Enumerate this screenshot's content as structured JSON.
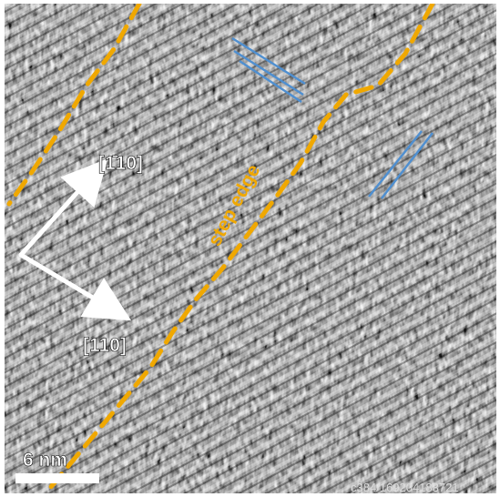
{
  "figure": {
    "direction_label_1": "[1̄1​0]",
    "direction_label_2": "[110]",
    "step_edge_label": "step edge",
    "scale_bar_label": "6 nm",
    "corner_id": "c384/169204183721",
    "colors": {
      "dashed_line": "#f0a800",
      "blue_lines": "#4f8fd0",
      "arrows": "#ffffff",
      "label_text": "#ffffff",
      "step_edge_text": "#f0a800"
    },
    "icons": [
      "direction-arrow-icon",
      "scale-bar-icon"
    ]
  }
}
